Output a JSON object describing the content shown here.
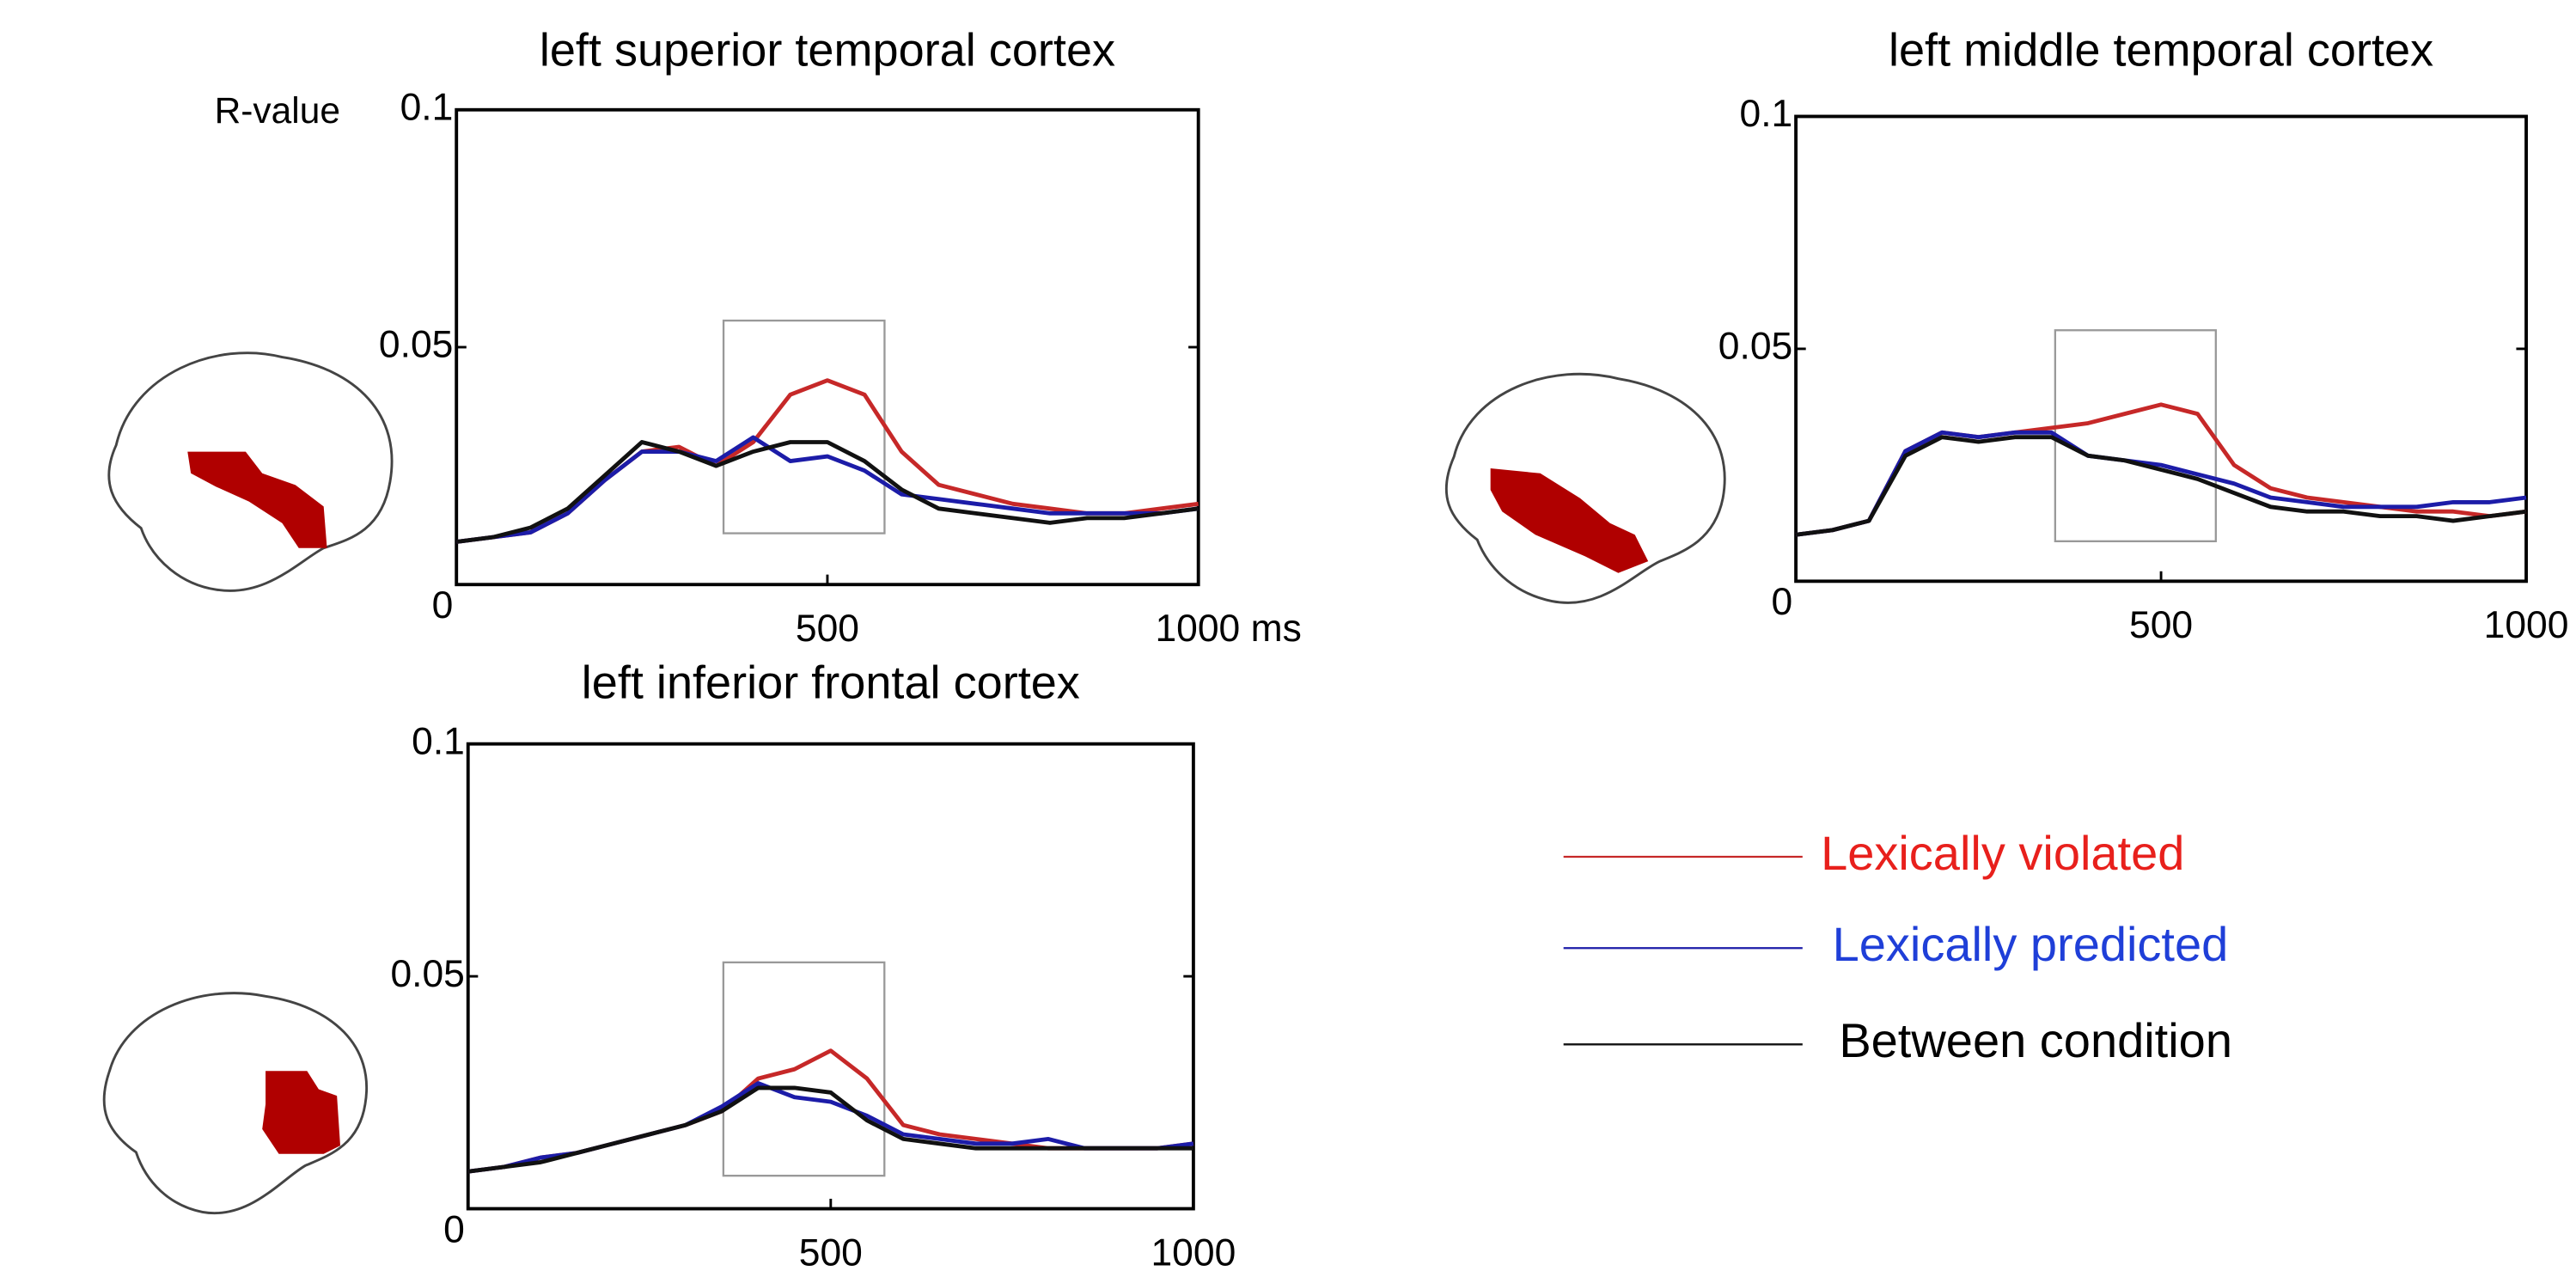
{
  "chart_data": [
    {
      "type": "line",
      "title": "left superior temporal cortex",
      "ylabel": "R-value",
      "x": [
        0,
        50,
        100,
        150,
        200,
        250,
        300,
        350,
        400,
        450,
        500,
        550,
        600,
        650,
        700,
        750,
        800,
        850,
        900,
        950,
        1000
      ],
      "xlim": [
        0,
        1000
      ],
      "xticks": [
        500,
        {
          "value": 1000,
          "label": "1000 ms"
        }
      ],
      "ylim": [
        0,
        0.1
      ],
      "yticks": [
        0,
        0.05,
        0.1
      ],
      "highlight_x": [
        360,
        577
      ],
      "highlight_y": [
        0.0108,
        0.0556
      ],
      "series": [
        {
          "name": "Lexically violated",
          "color": "#c62828",
          "values": [
            0.009,
            0.01,
            0.011,
            0.015,
            0.022,
            0.028,
            0.029,
            0.025,
            0.03,
            0.04,
            0.043,
            0.04,
            0.028,
            0.021,
            0.019,
            0.017,
            0.016,
            0.015,
            0.015,
            0.016,
            0.017
          ]
        },
        {
          "name": "Lexically predicted",
          "color": "#1c1ca8",
          "values": [
            0.009,
            0.01,
            0.011,
            0.015,
            0.022,
            0.028,
            0.028,
            0.026,
            0.031,
            0.026,
            0.027,
            0.024,
            0.019,
            0.018,
            0.017,
            0.016,
            0.015,
            0.015,
            0.015,
            0.015,
            0.016
          ]
        },
        {
          "name": "Between condition",
          "color": "#111111",
          "values": [
            0.009,
            0.01,
            0.012,
            0.016,
            0.023,
            0.03,
            0.028,
            0.025,
            0.028,
            0.03,
            0.03,
            0.026,
            0.02,
            0.016,
            0.015,
            0.014,
            0.013,
            0.014,
            0.014,
            0.015,
            0.016
          ]
        }
      ]
    },
    {
      "type": "line",
      "title": "left middle temporal cortex",
      "x": [
        0,
        50,
        100,
        150,
        200,
        250,
        300,
        350,
        400,
        450,
        500,
        550,
        600,
        650,
        700,
        750,
        800,
        850,
        900,
        950,
        1000
      ],
      "xlim": [
        0,
        1000
      ],
      "xticks": [
        500,
        1000
      ],
      "ylim": [
        0,
        0.1
      ],
      "yticks": [
        0,
        0.05,
        0.1
      ],
      "highlight_x": [
        355,
        575
      ],
      "highlight_y": [
        0.0086,
        0.054
      ],
      "series": [
        {
          "name": "Lexically violated",
          "color": "#c62828",
          "values": [
            0.01,
            0.011,
            0.013,
            0.028,
            0.032,
            0.031,
            0.032,
            0.033,
            0.034,
            0.036,
            0.038,
            0.036,
            0.025,
            0.02,
            0.018,
            0.017,
            0.016,
            0.015,
            0.015,
            0.014,
            0.015
          ]
        },
        {
          "name": "Lexically predicted",
          "color": "#1c1ca8",
          "values": [
            0.01,
            0.011,
            0.013,
            0.028,
            0.032,
            0.031,
            0.032,
            0.032,
            0.027,
            0.026,
            0.025,
            0.023,
            0.021,
            0.018,
            0.017,
            0.016,
            0.016,
            0.016,
            0.017,
            0.017,
            0.018
          ]
        },
        {
          "name": "Between condition",
          "color": "#111111",
          "values": [
            0.01,
            0.011,
            0.013,
            0.027,
            0.031,
            0.03,
            0.031,
            0.031,
            0.027,
            0.026,
            0.024,
            0.022,
            0.019,
            0.016,
            0.015,
            0.015,
            0.014,
            0.014,
            0.013,
            0.014,
            0.015
          ]
        }
      ]
    },
    {
      "type": "line",
      "title": "left inferior frontal cortex",
      "x": [
        0,
        50,
        100,
        150,
        200,
        250,
        300,
        350,
        400,
        450,
        500,
        550,
        600,
        650,
        700,
        750,
        800,
        850,
        900,
        950,
        1000
      ],
      "xlim": [
        0,
        1000
      ],
      "xticks": [
        500,
        1000
      ],
      "ylim": [
        0,
        0.1
      ],
      "yticks": [
        0,
        0.05,
        0.1
      ],
      "highlight_x": [
        352,
        574
      ],
      "highlight_y": [
        0.0071,
        0.053
      ],
      "series": [
        {
          "name": "Lexically violated",
          "color": "#c62828",
          "values": [
            0.008,
            0.009,
            0.011,
            0.012,
            0.014,
            0.016,
            0.018,
            0.021,
            0.028,
            0.03,
            0.034,
            0.028,
            0.018,
            0.016,
            0.015,
            0.014,
            0.013,
            0.013,
            0.013,
            0.013,
            0.014
          ]
        },
        {
          "name": "Lexically predicted",
          "color": "#1c1ca8",
          "values": [
            0.008,
            0.009,
            0.011,
            0.012,
            0.014,
            0.016,
            0.018,
            0.022,
            0.027,
            0.024,
            0.023,
            0.02,
            0.016,
            0.015,
            0.014,
            0.014,
            0.015,
            0.013,
            0.013,
            0.013,
            0.014
          ]
        },
        {
          "name": "Between condition",
          "color": "#111111",
          "values": [
            0.008,
            0.009,
            0.01,
            0.012,
            0.014,
            0.016,
            0.018,
            0.021,
            0.026,
            0.026,
            0.025,
            0.019,
            0.015,
            0.014,
            0.013,
            0.013,
            0.013,
            0.013,
            0.013,
            0.013,
            0.013
          ]
        }
      ]
    }
  ]
}
